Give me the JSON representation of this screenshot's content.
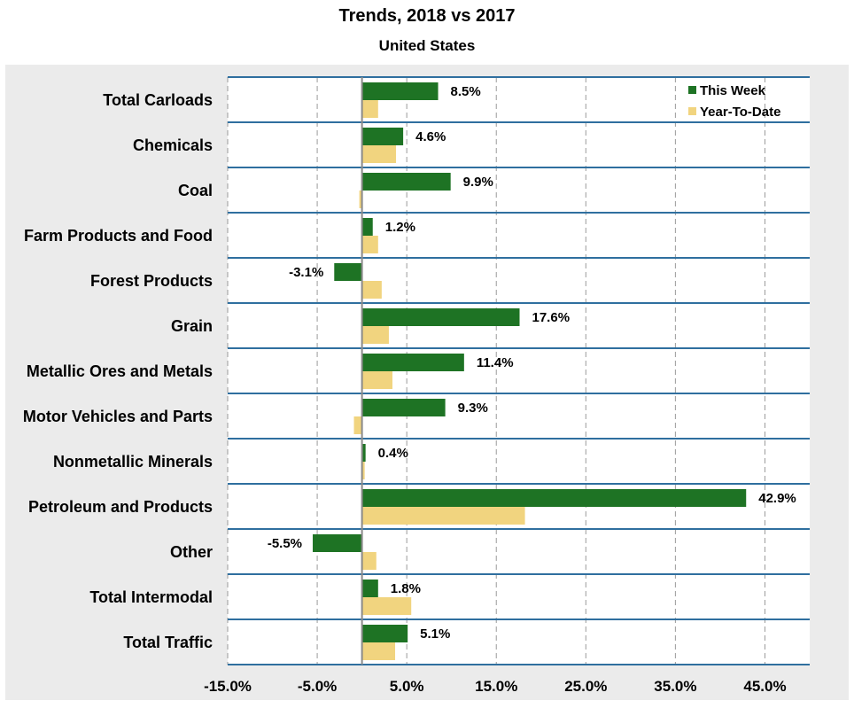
{
  "colors": {
    "this_week": "#1e7324",
    "year_to_date": "#f1d47f",
    "frame_background": "#ebebeb",
    "band_border": "#2f6f9f",
    "grid": "#9a9a9a",
    "zero_line": "#8a8a8a"
  },
  "chart_data": {
    "type": "bar",
    "orientation": "horizontal",
    "title": "Trends, 2018 vs 2017",
    "subtitle": "United States",
    "xlabel": "",
    "ylabel": "",
    "xlim": [
      -15,
      50
    ],
    "grid": true,
    "legend": "top-right",
    "categories": [
      "Total Carloads",
      "Chemicals",
      "Coal",
      "Farm Products and Food",
      "Forest Products",
      "Grain",
      "Metallic Ores and Metals",
      "Motor Vehicles and Parts",
      "Nonmetallic Minerals",
      "Petroleum and Products",
      "Other",
      "Total Intermodal",
      "Total Traffic"
    ],
    "series": [
      {
        "name": "This Week",
        "values": [
          8.5,
          4.6,
          9.9,
          1.2,
          -3.1,
          17.6,
          11.4,
          9.3,
          0.4,
          42.9,
          -5.5,
          1.8,
          5.1
        ],
        "labels": [
          "8.5%",
          "4.6%",
          "9.9%",
          "1.2%",
          "-3.1%",
          "17.6%",
          "11.4%",
          "9.3%",
          "0.4%",
          "42.9%",
          "-5.5%",
          "1.8%",
          "5.1%"
        ]
      },
      {
        "name": "Year-To-Date",
        "values": [
          1.8,
          3.8,
          -0.3,
          1.8,
          2.2,
          3.0,
          3.4,
          -0.9,
          0.3,
          18.2,
          1.6,
          5.5,
          3.7
        ]
      }
    ],
    "ticks": {
      "values": [
        -15,
        -5,
        5,
        15,
        25,
        35,
        45
      ],
      "labels": [
        "-15.0%",
        "-5.0%",
        "5.0%",
        "15.0%",
        "25.0%",
        "35.0%",
        "45.0%"
      ]
    }
  }
}
